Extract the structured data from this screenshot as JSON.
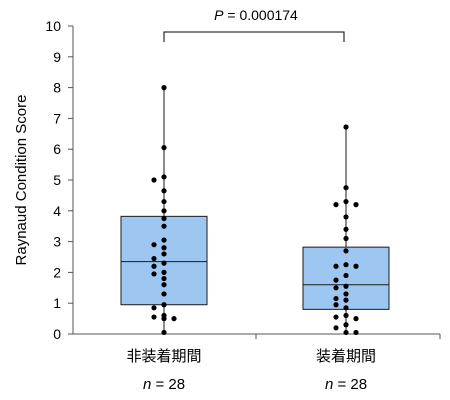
{
  "chart_data": {
    "type": "box",
    "ylabel": "Raynaud Condition Score",
    "ylim": [
      0,
      10
    ],
    "yticks": [
      0,
      1,
      2,
      3,
      4,
      5,
      6,
      7,
      8,
      9,
      10
    ],
    "categories": [
      "非装着期間",
      "装着期間"
    ],
    "n": [
      {
        "prefix": "n",
        "text": " = 28"
      },
      {
        "prefix": "n",
        "text": " = 28"
      }
    ],
    "annotation": {
      "prefix": "P",
      "text": " = 0.000174"
    },
    "colors": {
      "box_fill": "#9dc7f1",
      "box_stroke": "#1a1a1a",
      "points": "#000000"
    },
    "boxes": [
      {
        "min": 0.0,
        "q1": 0.95,
        "median": 2.35,
        "q3": 3.82,
        "max": 8.0
      },
      {
        "min": 0.0,
        "q1": 0.8,
        "median": 1.6,
        "q3": 2.82,
        "max": 6.72
      }
    ],
    "points": [
      [
        8.0,
        6.05,
        5.1,
        5.0,
        4.65,
        4.3,
        4.0,
        3.75,
        3.5,
        3.05,
        2.9,
        2.8,
        2.6,
        2.45,
        2.3,
        2.2,
        2.0,
        1.95,
        1.8,
        1.6,
        1.3,
        0.95,
        0.85,
        0.6,
        0.55,
        0.5,
        0.5,
        0.05
      ],
      [
        6.72,
        4.75,
        4.3,
        4.2,
        4.2,
        3.8,
        3.4,
        3.1,
        2.7,
        2.25,
        2.2,
        2.2,
        1.9,
        1.75,
        1.55,
        1.5,
        1.3,
        1.15,
        1.1,
        0.95,
        0.85,
        0.6,
        0.55,
        0.5,
        0.3,
        0.2,
        0.05,
        0.05
      ]
    ]
  }
}
